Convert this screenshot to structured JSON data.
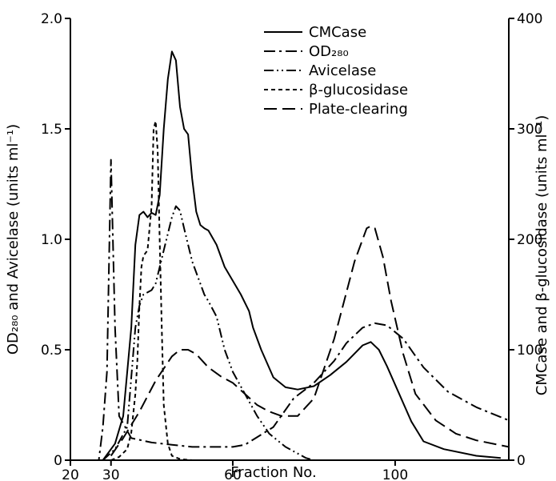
{
  "chart_data": {
    "type": "line",
    "x_axis": {
      "label": "Fraction No.",
      "ticks": [
        20,
        30,
        60,
        100
      ],
      "tick_labels": [
        "20",
        "30",
        "60",
        "100"
      ],
      "range": [
        20,
        128
      ]
    },
    "y_left": {
      "label": "OD₂₈₀ and Avicelase (units ml⁻¹)",
      "ticks": [
        0,
        0.5,
        1.0,
        1.5,
        2.0
      ],
      "tick_labels": [
        "0",
        "0.5",
        "1.0",
        "1.5",
        "2.0"
      ],
      "range": [
        0,
        2.0
      ]
    },
    "y_right": {
      "label": "CMCase and β-glucosidase (units ml⁻¹)",
      "ticks": [
        0,
        100,
        200,
        300,
        400
      ],
      "tick_labels": [
        "0",
        "100",
        "200",
        "300",
        "400"
      ],
      "range": [
        0,
        400
      ]
    },
    "legend_position": "top-center",
    "series": [
      {
        "name": "CMCase",
        "axis": "right",
        "dash": "solid",
        "points": [
          [
            24,
            0
          ],
          [
            28,
            0
          ],
          [
            31,
            15
          ],
          [
            33,
            40
          ],
          [
            35,
            120
          ],
          [
            36,
            195
          ],
          [
            37,
            222
          ],
          [
            38,
            225
          ],
          [
            39,
            220
          ],
          [
            40,
            224
          ],
          [
            41,
            222
          ],
          [
            42,
            240
          ],
          [
            43,
            300
          ],
          [
            44,
            345
          ],
          [
            45,
            370
          ],
          [
            46,
            362
          ],
          [
            47,
            320
          ],
          [
            48,
            300
          ],
          [
            49,
            295
          ],
          [
            50,
            255
          ],
          [
            51,
            225
          ],
          [
            52,
            213
          ],
          [
            53,
            210
          ],
          [
            54,
            208
          ],
          [
            56,
            195
          ],
          [
            58,
            175
          ],
          [
            62,
            150
          ],
          [
            64,
            135
          ],
          [
            65,
            120
          ],
          [
            67,
            100
          ],
          [
            70,
            75
          ],
          [
            73,
            66
          ],
          [
            76,
            64
          ],
          [
            80,
            67
          ],
          [
            84,
            77
          ],
          [
            88,
            89
          ],
          [
            92,
            104
          ],
          [
            94,
            107
          ],
          [
            96,
            100
          ],
          [
            98,
            85
          ],
          [
            101,
            60
          ],
          [
            104,
            35
          ],
          [
            107,
            17
          ],
          [
            112,
            10
          ],
          [
            120,
            4
          ],
          [
            126,
            2
          ]
        ]
      },
      {
        "name": "OD₂₈₀",
        "axis": "left",
        "dash": "dash-dot",
        "points": [
          [
            25,
            0
          ],
          [
            27,
            0
          ],
          [
            28,
            0.15
          ],
          [
            29,
            0.4
          ],
          [
            30,
            1.36
          ],
          [
            31,
            0.6
          ],
          [
            32,
            0.2
          ],
          [
            35,
            0.1
          ],
          [
            40,
            0.08
          ],
          [
            45,
            0.07
          ],
          [
            50,
            0.06
          ],
          [
            60,
            0.06
          ],
          [
            63,
            0.07
          ],
          [
            70,
            0.15
          ],
          [
            75,
            0.28
          ],
          [
            80,
            0.35
          ],
          [
            85,
            0.45
          ],
          [
            88,
            0.53
          ],
          [
            92,
            0.6
          ],
          [
            95,
            0.62
          ],
          [
            98,
            0.61
          ],
          [
            102,
            0.55
          ],
          [
            107,
            0.42
          ],
          [
            113,
            0.31
          ],
          [
            120,
            0.24
          ],
          [
            128,
            0.18
          ]
        ]
      },
      {
        "name": "Avicelase",
        "axis": "left",
        "dash": "dash-dot-dot",
        "points": [
          [
            28,
            0
          ],
          [
            31,
            0.05
          ],
          [
            34,
            0.15
          ],
          [
            36,
            0.6
          ],
          [
            37,
            0.7
          ],
          [
            38,
            0.75
          ],
          [
            40,
            0.77
          ],
          [
            41,
            0.8
          ],
          [
            43,
            0.95
          ],
          [
            45,
            1.1
          ],
          [
            46,
            1.15
          ],
          [
            47,
            1.13
          ],
          [
            48,
            1.05
          ],
          [
            50,
            0.9
          ],
          [
            53,
            0.75
          ],
          [
            54,
            0.72
          ],
          [
            56,
            0.65
          ],
          [
            58,
            0.5
          ],
          [
            60,
            0.4
          ],
          [
            63,
            0.3
          ],
          [
            66,
            0.2
          ],
          [
            69,
            0.12
          ],
          [
            73,
            0.06
          ],
          [
            78,
            0.01
          ],
          [
            80,
            0
          ]
        ]
      },
      {
        "name": "β-glucosidase",
        "axis": "right",
        "dash": "short-dash",
        "points": [
          [
            30,
            0
          ],
          [
            32,
            3
          ],
          [
            34,
            10
          ],
          [
            35,
            25
          ],
          [
            36,
            60
          ],
          [
            36.5,
            90
          ],
          [
            37,
            140
          ],
          [
            37.5,
            175
          ],
          [
            38,
            185
          ],
          [
            39,
            190
          ],
          [
            40,
            230
          ],
          [
            40.5,
            300
          ],
          [
            41,
            307
          ],
          [
            41.5,
            280
          ],
          [
            42,
            200
          ],
          [
            42.5,
            120
          ],
          [
            43,
            50
          ],
          [
            44,
            15
          ],
          [
            45,
            4
          ],
          [
            47,
            1
          ],
          [
            50,
            0
          ]
        ]
      },
      {
        "name": "Plate-clearing",
        "axis": "left",
        "dash": "long-dash",
        "points": [
          [
            30,
            0.02
          ],
          [
            33,
            0.1
          ],
          [
            37,
            0.22
          ],
          [
            41,
            0.36
          ],
          [
            45,
            0.47
          ],
          [
            47,
            0.5
          ],
          [
            49,
            0.5
          ],
          [
            51,
            0.48
          ],
          [
            54,
            0.42
          ],
          [
            57,
            0.38
          ],
          [
            60,
            0.35
          ],
          [
            63,
            0.3
          ],
          [
            66,
            0.25
          ],
          [
            69,
            0.22
          ],
          [
            72,
            0.2
          ],
          [
            76,
            0.2
          ],
          [
            80,
            0.28
          ],
          [
            85,
            0.55
          ],
          [
            90,
            0.9
          ],
          [
            93,
            1.05
          ],
          [
            94,
            1.06
          ],
          [
            95,
            1.05
          ],
          [
            97,
            0.92
          ],
          [
            99,
            0.72
          ],
          [
            102,
            0.48
          ],
          [
            105,
            0.3
          ],
          [
            110,
            0.18
          ],
          [
            115,
            0.12
          ],
          [
            120,
            0.09
          ],
          [
            128,
            0.06
          ]
        ]
      }
    ]
  }
}
